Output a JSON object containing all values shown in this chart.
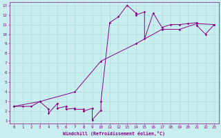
{
  "xlabel": "Windchill (Refroidissement éolien,°C)",
  "background_color": "#c8eef0",
  "line_color": "#880088",
  "xlim": [
    -0.5,
    23.5
  ],
  "ylim": [
    0.7,
    13.3
  ],
  "xticks": [
    0,
    1,
    2,
    3,
    4,
    5,
    6,
    7,
    8,
    9,
    10,
    11,
    12,
    13,
    14,
    15,
    16,
    17,
    18,
    19,
    20,
    21,
    22,
    23
  ],
  "yticks": [
    1,
    2,
    3,
    4,
    5,
    6,
    7,
    8,
    9,
    10,
    11,
    12,
    13
  ],
  "series1_x": [
    0,
    1,
    2,
    3,
    4,
    4,
    5,
    5,
    6,
    6,
    7,
    7,
    8,
    8,
    9,
    9,
    10,
    10,
    11,
    12,
    13,
    14,
    14,
    15,
    15,
    16,
    17,
    18,
    19,
    20,
    21,
    21,
    22,
    23
  ],
  "series1_y": [
    2.5,
    2.5,
    2.5,
    3.0,
    2.2,
    1.8,
    2.8,
    2.3,
    2.5,
    2.2,
    2.3,
    2.2,
    2.2,
    2.0,
    2.3,
    1.1,
    2.1,
    3.0,
    11.2,
    11.8,
    13.0,
    12.2,
    12.0,
    12.3,
    9.5,
    12.2,
    10.7,
    11.0,
    11.0,
    11.1,
    11.2,
    10.9,
    10.0,
    11.0
  ],
  "series2_x": [
    0,
    3,
    7,
    10,
    14,
    17,
    19,
    21,
    23
  ],
  "series2_y": [
    2.5,
    3.0,
    4.0,
    7.2,
    9.0,
    10.5,
    10.5,
    11.1,
    11.0
  ]
}
